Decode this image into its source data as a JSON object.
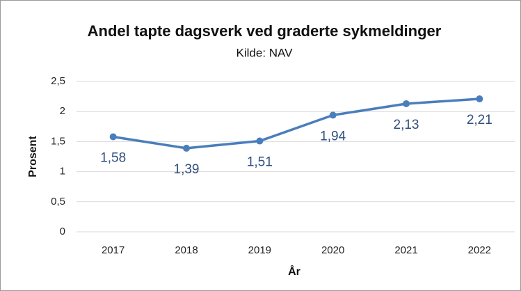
{
  "chart_data": {
    "type": "line",
    "title": "Andel tapte dagsverk ved graderte sykmeldinger",
    "subtitle": "Kilde: NAV",
    "x_label": "År",
    "y_label": "Prosent",
    "categories": [
      "2017",
      "2018",
      "2019",
      "2020",
      "2021",
      "2022"
    ],
    "series": [
      {
        "name": "Andel tapte dagsverk",
        "color": "#4a7ebb",
        "values": [
          1.58,
          1.39,
          1.51,
          1.94,
          2.13,
          2.21
        ],
        "value_labels": [
          "1,58",
          "1,39",
          "1,51",
          "1,94",
          "2,13",
          "2,21"
        ]
      }
    ],
    "ylim": [
      0,
      2.5
    ],
    "yticks": [
      0,
      {
        "value": 0.5,
        "label": "0,5"
      },
      1,
      {
        "value": 1.5,
        "label": "1,5"
      },
      2,
      {
        "value": 2.5,
        "label": "2,5"
      }
    ],
    "grid": true
  }
}
